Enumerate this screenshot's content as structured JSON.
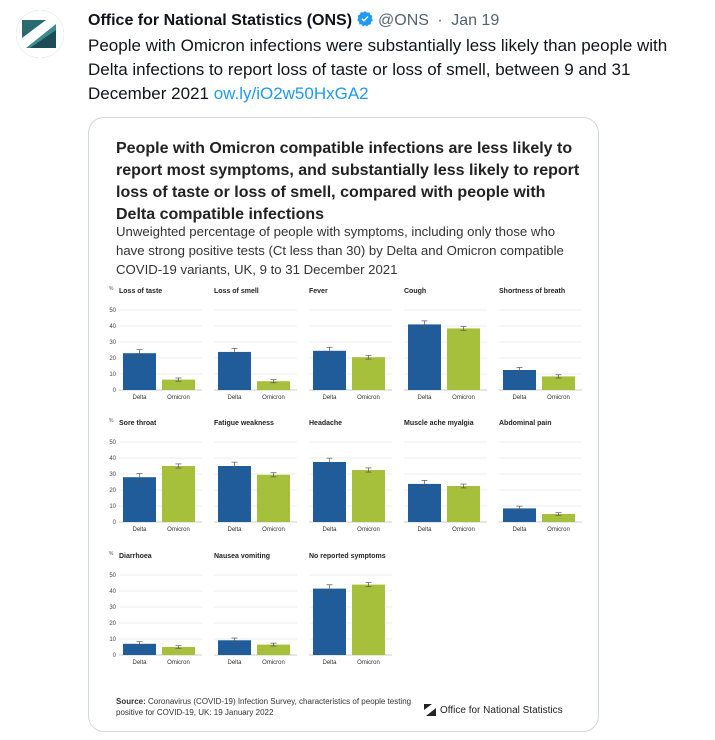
{
  "tweet": {
    "author_name": "Office for National Statistics (ONS)",
    "handle": "@ONS",
    "separator": "·",
    "date": "Jan 19",
    "text": "People with Omicron infections were substantially less likely than people with Delta infections to report loss of taste or loss of smell, between 9 and 31 December 2021 ",
    "link": "ow.ly/iO2w50HxGA2",
    "avatar_icon": "ons-logo-icon",
    "verified_icon": "verified-badge-icon"
  },
  "card": {
    "title": "People with Omicron compatible infections are less likely to report most symptoms, and substantially less likely to report loss of taste or loss of smell, compared with people with Delta compatible infections",
    "subtitle": "Unweighted percentage of people with symptoms, including only those who have strong positive tests (Ct less than 30) by Delta and Omicron compatible COVID-19 variants, UK, 9 to 31 December 2021",
    "source_label": "Source:",
    "source_text": "Coronavirus (COVID-19) Infection Survey, characteristics of people testing positive for COVID-19, UK: 19 January 2022",
    "logo_text": "Office for National Statistics",
    "colors": {
      "delta": "#1f5c99",
      "omicron": "#a6c03c",
      "grid": "#d9d9d9"
    }
  },
  "chart_data": {
    "type": "bar",
    "categories": [
      "Delta",
      "Omicron"
    ],
    "unit_label": "%",
    "ylim": [
      0,
      50
    ],
    "yticks": [
      0,
      10,
      20,
      30,
      40,
      50
    ],
    "panels": [
      {
        "name": "Loss of taste",
        "values": [
          23,
          6.5
        ],
        "errors": [
          2.2,
          1
        ]
      },
      {
        "name": "Loss of smell",
        "values": [
          23.8,
          5.5
        ],
        "errors": [
          2.2,
          1
        ]
      },
      {
        "name": "Fever",
        "values": [
          24.5,
          20.5
        ],
        "errors": [
          2.2,
          1.2
        ]
      },
      {
        "name": "Cough",
        "values": [
          41,
          38.5
        ],
        "errors": [
          2.2,
          1.2
        ]
      },
      {
        "name": "Shortness of breath",
        "values": [
          12.5,
          8.5
        ],
        "errors": [
          1.6,
          1
        ]
      },
      {
        "name": "Sore throat",
        "values": [
          28,
          35
        ],
        "errors": [
          2.3,
          1.3
        ]
      },
      {
        "name": "Fatigue weakness",
        "values": [
          35,
          29.5
        ],
        "errors": [
          2.4,
          1.3
        ]
      },
      {
        "name": "Headache",
        "values": [
          37.5,
          32.5
        ],
        "errors": [
          2.4,
          1.3
        ]
      },
      {
        "name": "Muscle ache myalgia",
        "values": [
          23.8,
          22.5
        ],
        "errors": [
          2.2,
          1.2
        ]
      },
      {
        "name": "Abdominal pain",
        "values": [
          8.5,
          5
        ],
        "errors": [
          1.4,
          0.8
        ]
      },
      {
        "name": "Diarrhoea",
        "values": [
          7,
          5
        ],
        "errors": [
          1.3,
          0.8
        ]
      },
      {
        "name": "Nausea vomiting",
        "values": [
          9.2,
          6.5
        ],
        "errors": [
          1.4,
          0.9
        ]
      },
      {
        "name": "No reported symptoms",
        "values": [
          41.5,
          44
        ],
        "errors": [
          2.4,
          1.3
        ]
      }
    ]
  }
}
